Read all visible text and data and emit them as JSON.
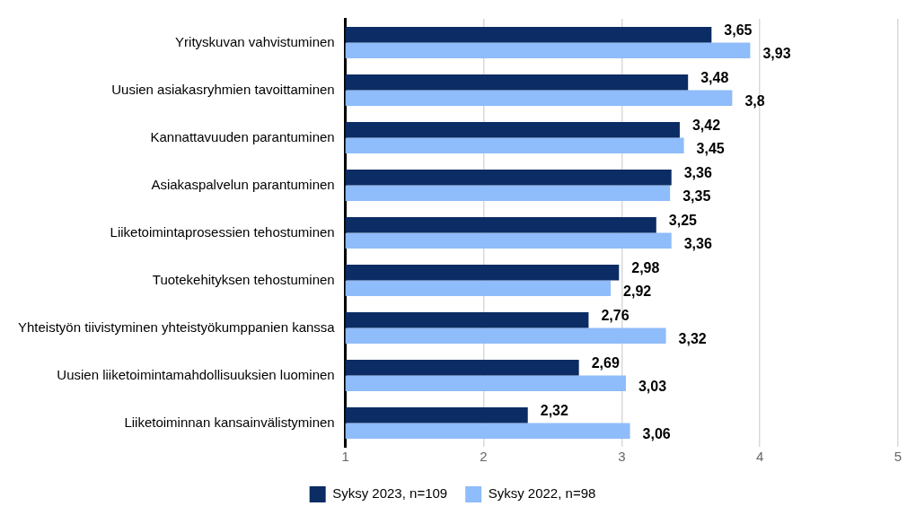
{
  "chart_data": {
    "type": "bar",
    "orientation": "horizontal",
    "categories": [
      "Yrityskuvan vahvistuminen",
      "Uusien asiakasryhmien tavoittaminen",
      "Kannattavuuden parantuminen",
      "Asiakaspalvelun parantuminen",
      "Liiketoimintaprosessien tehostuminen",
      "Tuotekehityksen tehostuminen",
      "Yhteistyön tiivistyminen yhteistyökumppanien kanssa",
      "Uusien liiketoimintamahdollisuuksien luominen",
      "Liiketoiminnan kansainvälistyminen"
    ],
    "series": [
      {
        "name": "Syksy 2023, n=109",
        "color": "#0b2c64",
        "values": [
          3.65,
          3.48,
          3.42,
          3.36,
          3.25,
          2.98,
          2.76,
          2.69,
          2.32
        ],
        "value_labels": [
          "3,65",
          "3,48",
          "3,42",
          "3,36",
          "3,25",
          "2,98",
          "2,76",
          "2,69",
          "2,32"
        ]
      },
      {
        "name": "Syksy 2022, n=98",
        "color": "#8fbcfa",
        "values": [
          3.93,
          3.8,
          3.45,
          3.35,
          3.36,
          2.92,
          3.32,
          3.03,
          3.06
        ],
        "value_labels": [
          "3,93",
          "3,8",
          "3,45",
          "3,35",
          "3,36",
          "2,92",
          "3,32",
          "3,03",
          "3,06"
        ]
      }
    ],
    "xlim": [
      1,
      5
    ],
    "xticks": [
      1,
      2,
      3,
      4,
      5
    ],
    "grid": "x",
    "legend": "bottom"
  }
}
